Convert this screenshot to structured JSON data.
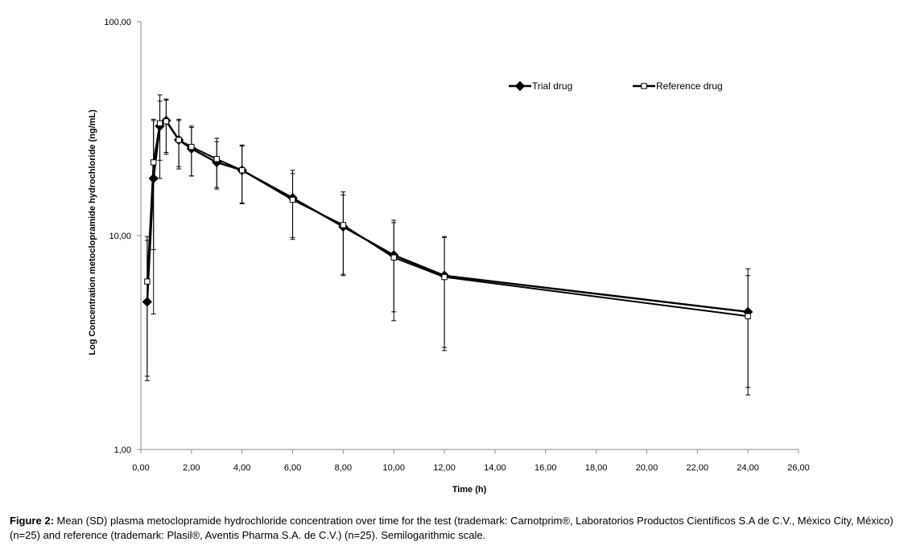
{
  "chart_data": {
    "type": "line",
    "title": "",
    "xlabel": "Time (h)",
    "ylabel": "Log Concentration metoclopramide hydrochloride (ng/mL)",
    "y_scale": "log",
    "xlim": [
      0,
      26
    ],
    "ylim": [
      1,
      100
    ],
    "x_ticks": [
      0,
      2,
      4,
      6,
      8,
      10,
      12,
      14,
      16,
      18,
      20,
      22,
      24,
      26
    ],
    "x_tick_labels": [
      "0,00",
      "2,00",
      "4,00",
      "6,00",
      "8,00",
      "10,00",
      "12,00",
      "14,00",
      "16,00",
      "18,00",
      "20,00",
      "22,00",
      "24,00",
      "26,00"
    ],
    "y_ticks": [
      1,
      10,
      100
    ],
    "y_tick_labels": [
      "1,00",
      "10,00",
      "100,00"
    ],
    "grid": false,
    "legend_position": "top-right",
    "series": [
      {
        "name": "Trial drug",
        "marker": "diamond-filled",
        "color": "#000000",
        "x": [
          0.25,
          0.5,
          0.75,
          1,
          1.5,
          2,
          3,
          4,
          6,
          8,
          10,
          12,
          24
        ],
        "y": [
          4.9,
          18.5,
          32.5,
          34.5,
          28,
          25.5,
          22,
          20.2,
          15,
          11,
          8.1,
          6.5,
          4.4
        ],
        "err_low": [
          2.1,
          4.3,
          22.5,
          24,
          21,
          19,
          16.5,
          14.2,
          9.8,
          6.5,
          4.0,
          2.9,
          1.8
        ],
        "err_high": [
          9.9,
          34.5,
          42.5,
          43,
          35,
          32,
          27.5,
          26.2,
          20.2,
          16,
          11.8,
          9.9,
          7.0
        ]
      },
      {
        "name": "Reference drug",
        "marker": "square-open",
        "color": "#000000",
        "x": [
          0.25,
          0.5,
          0.75,
          1,
          1.5,
          2,
          3,
          4,
          6,
          8,
          10,
          12,
          24
        ],
        "y": [
          6.1,
          22,
          33.5,
          34.2,
          28,
          26,
          22.8,
          20.2,
          14.7,
          11.2,
          7.9,
          6.4,
          4.2
        ],
        "err_low": [
          2.2,
          8.6,
          18.5,
          24.5,
          20.5,
          19,
          16.8,
          14.1,
          9.6,
          6.6,
          4.4,
          3.0,
          1.95
        ],
        "err_high": [
          9.5,
          35,
          45.5,
          43.5,
          34.5,
          32.5,
          28.5,
          26.5,
          19.5,
          15.5,
          11.5,
          9.8,
          6.5
        ]
      }
    ]
  },
  "caption": {
    "label": "Figure 2:",
    "text": " Mean (SD) plasma metoclopramide hydrochloride concentration over time for the test (trademark: Carnotprim®, Laboratorios Productos Científicos S.A de C.V., México City, México) (n=25) and reference (trademark: Plasil®, Aventis Pharma S.A. de C.V.) (n=25).  Semilogarithmic scale."
  }
}
